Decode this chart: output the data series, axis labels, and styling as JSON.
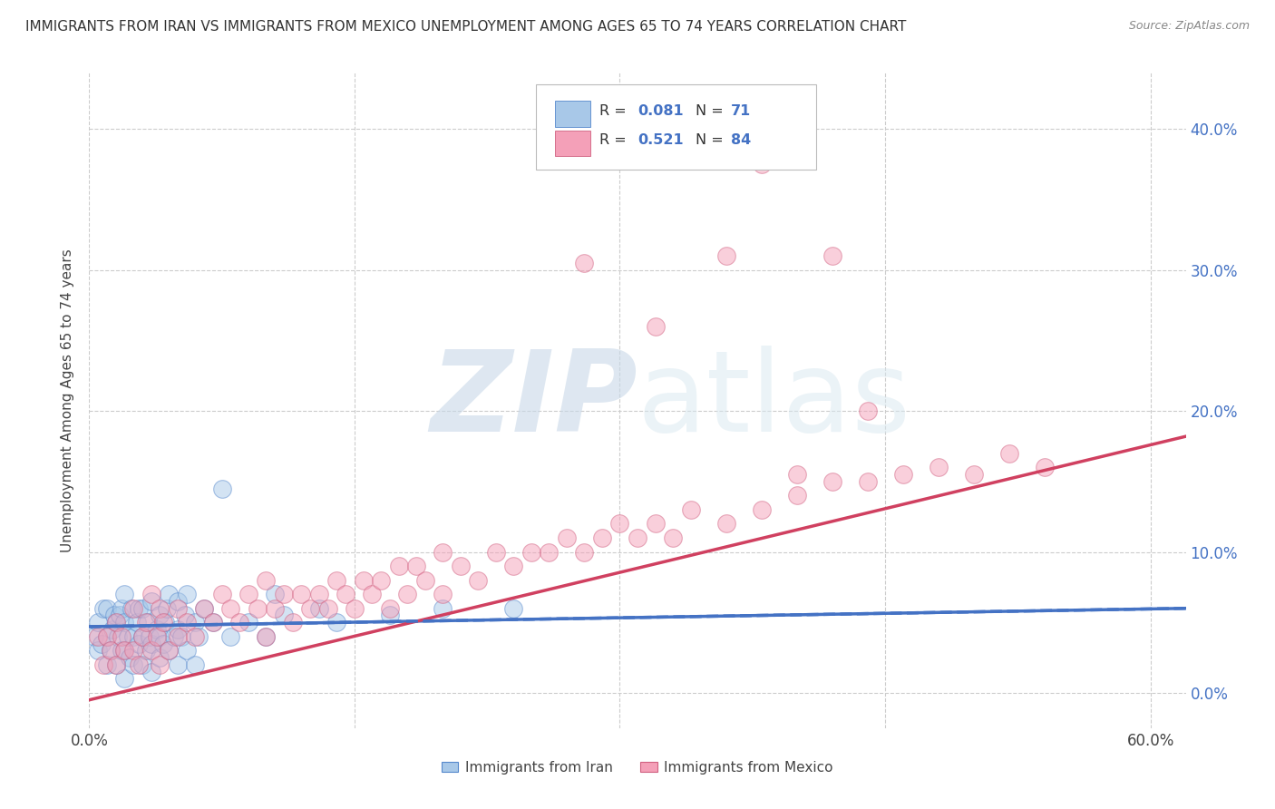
{
  "title": "IMMIGRANTS FROM IRAN VS IMMIGRANTS FROM MEXICO UNEMPLOYMENT AMONG AGES 65 TO 74 YEARS CORRELATION CHART",
  "source": "Source: ZipAtlas.com",
  "ylabel": "Unemployment Among Ages 65 to 74 years",
  "xlim": [
    0.0,
    0.62
  ],
  "ylim": [
    -0.025,
    0.44
  ],
  "iran_R": 0.081,
  "iran_N": 71,
  "mexico_R": 0.521,
  "mexico_N": 84,
  "iran_color": "#a8c8e8",
  "mexico_color": "#f4a0b8",
  "iran_edge_color": "#5588cc",
  "mexico_edge_color": "#d06080",
  "iran_line_color": "#4472c4",
  "mexico_line_color": "#d04060",
  "background_color": "#ffffff",
  "grid_color": "#cccccc",
  "watermark_color": "#c8d8e8",
  "ytick_vals": [
    0.0,
    0.1,
    0.2,
    0.3,
    0.4
  ],
  "xtick_vals": [
    0.0,
    0.15,
    0.3,
    0.45,
    0.6
  ],
  "iran_trendline_x": [
    0.0,
    0.62
  ],
  "iran_trendline_y": [
    0.047,
    0.06
  ],
  "mexico_trendline_x": [
    0.0,
    0.62
  ],
  "mexico_trendline_y": [
    -0.005,
    0.182
  ],
  "iran_scatter_x": [
    0.003,
    0.005,
    0.005,
    0.007,
    0.008,
    0.01,
    0.01,
    0.01,
    0.012,
    0.013,
    0.014,
    0.015,
    0.015,
    0.016,
    0.017,
    0.018,
    0.018,
    0.02,
    0.02,
    0.02,
    0.02,
    0.022,
    0.023,
    0.024,
    0.025,
    0.025,
    0.027,
    0.028,
    0.028,
    0.03,
    0.03,
    0.03,
    0.032,
    0.033,
    0.034,
    0.035,
    0.035,
    0.035,
    0.038,
    0.04,
    0.04,
    0.04,
    0.042,
    0.043,
    0.044,
    0.045,
    0.045,
    0.048,
    0.05,
    0.05,
    0.05,
    0.052,
    0.054,
    0.055,
    0.055,
    0.06,
    0.06,
    0.062,
    0.065,
    0.07,
    0.075,
    0.08,
    0.09,
    0.1,
    0.105,
    0.11,
    0.13,
    0.14,
    0.17,
    0.2,
    0.24
  ],
  "iran_scatter_y": [
    0.04,
    0.03,
    0.05,
    0.035,
    0.06,
    0.02,
    0.04,
    0.06,
    0.03,
    0.045,
    0.055,
    0.02,
    0.05,
    0.04,
    0.055,
    0.03,
    0.06,
    0.01,
    0.03,
    0.05,
    0.07,
    0.04,
    0.025,
    0.06,
    0.02,
    0.04,
    0.05,
    0.035,
    0.06,
    0.02,
    0.04,
    0.06,
    0.03,
    0.05,
    0.04,
    0.015,
    0.035,
    0.065,
    0.045,
    0.025,
    0.04,
    0.055,
    0.035,
    0.05,
    0.06,
    0.03,
    0.07,
    0.04,
    0.02,
    0.045,
    0.065,
    0.04,
    0.055,
    0.03,
    0.07,
    0.02,
    0.05,
    0.04,
    0.06,
    0.05,
    0.145,
    0.04,
    0.05,
    0.04,
    0.07,
    0.055,
    0.06,
    0.05,
    0.055,
    0.06,
    0.06
  ],
  "mexico_scatter_x": [
    0.005,
    0.008,
    0.01,
    0.012,
    0.015,
    0.015,
    0.018,
    0.02,
    0.025,
    0.025,
    0.028,
    0.03,
    0.032,
    0.035,
    0.035,
    0.038,
    0.04,
    0.04,
    0.042,
    0.045,
    0.05,
    0.05,
    0.055,
    0.06,
    0.065,
    0.07,
    0.075,
    0.08,
    0.085,
    0.09,
    0.095,
    0.1,
    0.1,
    0.105,
    0.11,
    0.115,
    0.12,
    0.125,
    0.13,
    0.135,
    0.14,
    0.145,
    0.15,
    0.155,
    0.16,
    0.165,
    0.17,
    0.175,
    0.18,
    0.185,
    0.19,
    0.2,
    0.2,
    0.21,
    0.22,
    0.23,
    0.24,
    0.25,
    0.26,
    0.27,
    0.28,
    0.29,
    0.3,
    0.31,
    0.32,
    0.33,
    0.34,
    0.36,
    0.38,
    0.4,
    0.4,
    0.42,
    0.44,
    0.46,
    0.48,
    0.5,
    0.52,
    0.54,
    0.36,
    0.42,
    0.38,
    0.28,
    0.32,
    0.44
  ],
  "mexico_scatter_y": [
    0.04,
    0.02,
    0.04,
    0.03,
    0.02,
    0.05,
    0.04,
    0.03,
    0.03,
    0.06,
    0.02,
    0.04,
    0.05,
    0.03,
    0.07,
    0.04,
    0.02,
    0.06,
    0.05,
    0.03,
    0.04,
    0.06,
    0.05,
    0.04,
    0.06,
    0.05,
    0.07,
    0.06,
    0.05,
    0.07,
    0.06,
    0.04,
    0.08,
    0.06,
    0.07,
    0.05,
    0.07,
    0.06,
    0.07,
    0.06,
    0.08,
    0.07,
    0.06,
    0.08,
    0.07,
    0.08,
    0.06,
    0.09,
    0.07,
    0.09,
    0.08,
    0.07,
    0.1,
    0.09,
    0.08,
    0.1,
    0.09,
    0.1,
    0.1,
    0.11,
    0.1,
    0.11,
    0.12,
    0.11,
    0.12,
    0.11,
    0.13,
    0.12,
    0.13,
    0.14,
    0.155,
    0.15,
    0.15,
    0.155,
    0.16,
    0.155,
    0.17,
    0.16,
    0.31,
    0.31,
    0.375,
    0.305,
    0.26,
    0.2
  ]
}
